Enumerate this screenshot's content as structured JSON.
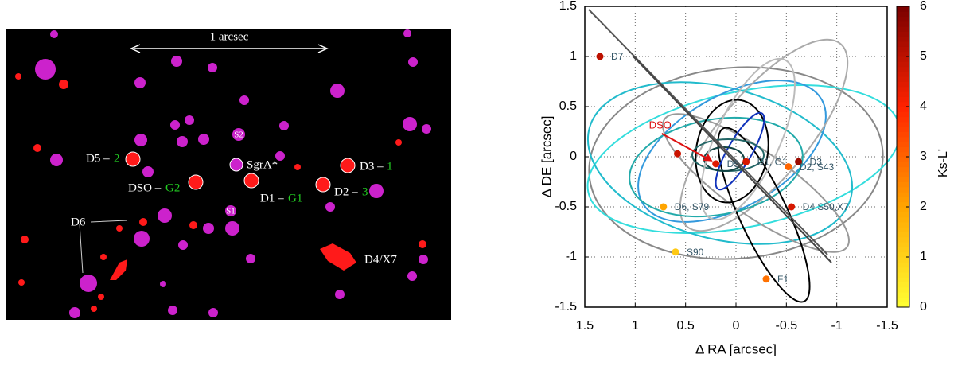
{
  "image_panel": {
    "scale_label": "1 arcsec",
    "labels": [
      "D5 –",
      "2",
      "DSO –",
      "G2",
      "SgrA*",
      "S2",
      "S1",
      "D1 –",
      "G1",
      "D2 –",
      "3",
      "D3 –",
      "1",
      "D6",
      "D4/X7"
    ]
  },
  "chart_data": {
    "type": "scatter",
    "xlabel": "Δ RA [arcsec]",
    "ylabel": "Δ DE [arcsec]",
    "xlim": [
      1.5,
      -1.5
    ],
    "ylim": [
      -1.5,
      1.5
    ],
    "xticks": [
      1.5,
      1,
      0.5,
      0,
      -0.5,
      -1,
      -1.5
    ],
    "yticks": [
      -1.5,
      -1,
      -0.5,
      0,
      0.5,
      1,
      1.5
    ],
    "grid": true,
    "x": [
      1.35,
      0.58,
      0.2,
      -0.1,
      -0.62,
      -0.52,
      -0.55,
      0.72,
      0.6,
      -0.3
    ],
    "y": [
      1.0,
      0.03,
      -0.07,
      -0.05,
      -0.05,
      -0.1,
      -0.5,
      -0.5,
      -0.95,
      -1.22
    ],
    "color_values": [
      5.0,
      4.8,
      4.5,
      4.6,
      5.5,
      3.0,
      4.6,
      2.0,
      1.2,
      2.8
    ],
    "point_labels": [
      "D7",
      null,
      "D5",
      "D1, G1",
      "D3",
      "D2, S43",
      "D4,S50,X7",
      "D6, S79",
      "S90",
      "F1"
    ],
    "annotation": "DSO",
    "colorbar": {
      "label": "Ks-L'",
      "lim": [
        0,
        6
      ],
      "ticks": [
        0,
        1,
        2,
        3,
        4,
        5,
        6
      ],
      "colormap": [
        "#ffff33",
        "#ffa500",
        "#ff2200",
        "#7a0000"
      ]
    }
  }
}
